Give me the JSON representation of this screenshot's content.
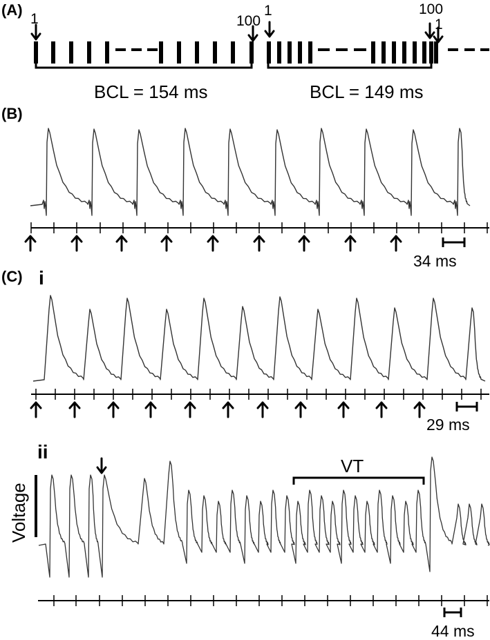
{
  "panels": {
    "A": "(A)",
    "B": "(B)",
    "C": "(C)",
    "Ci": "i",
    "Cii": "ii"
  },
  "protocol": {
    "start_label_1": "1",
    "end_label_1": "100",
    "start_label_2": "1",
    "end_label_2": "100",
    "start_label_3": "1",
    "bcl_1": "BCL = 154 ms",
    "bcl_2": "BCL = 149 ms"
  },
  "traces": {
    "B_scale": "34 ms",
    "Ci_scale": "29 ms",
    "Cii_scale": "44 ms",
    "vt_label": "VT",
    "y_label": "Voltage"
  },
  "colors": {
    "ink": "#000000",
    "trace": "#333333",
    "background": "#ffffff"
  }
}
